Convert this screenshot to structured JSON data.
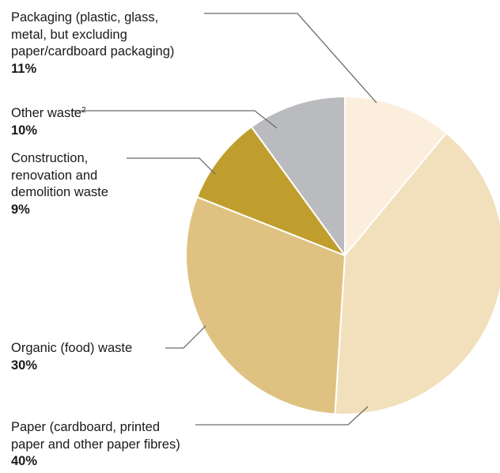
{
  "chart_data": {
    "type": "pie",
    "slices": [
      {
        "label_lines": [
          "Packaging (plastic, glass,",
          "metal, but excluding",
          "paper/cardboard packaging)"
        ],
        "value": 11,
        "value_label": "11%",
        "color": "#fbeedd"
      },
      {
        "label_lines": [
          "Paper (cardboard, printed",
          "paper and other paper fibres)"
        ],
        "value": 40,
        "value_label": "40%",
        "color": "#f2dfbc"
      },
      {
        "label_lines": [
          "Organic (food) waste"
        ],
        "value": 30,
        "value_label": "30%",
        "color": "#dfc281"
      },
      {
        "label_lines": [
          "Construction,",
          "renovation and",
          "demolition waste"
        ],
        "value": 9,
        "value_label": "9%",
        "color": "#c09e2d"
      },
      {
        "label_lines": [
          "Other waste"
        ],
        "footnote": "2",
        "value": 10,
        "value_label": "10%",
        "color": "#babbbe"
      }
    ],
    "start_angle": "12 o'clock",
    "direction": "clockwise",
    "legend": "none"
  }
}
